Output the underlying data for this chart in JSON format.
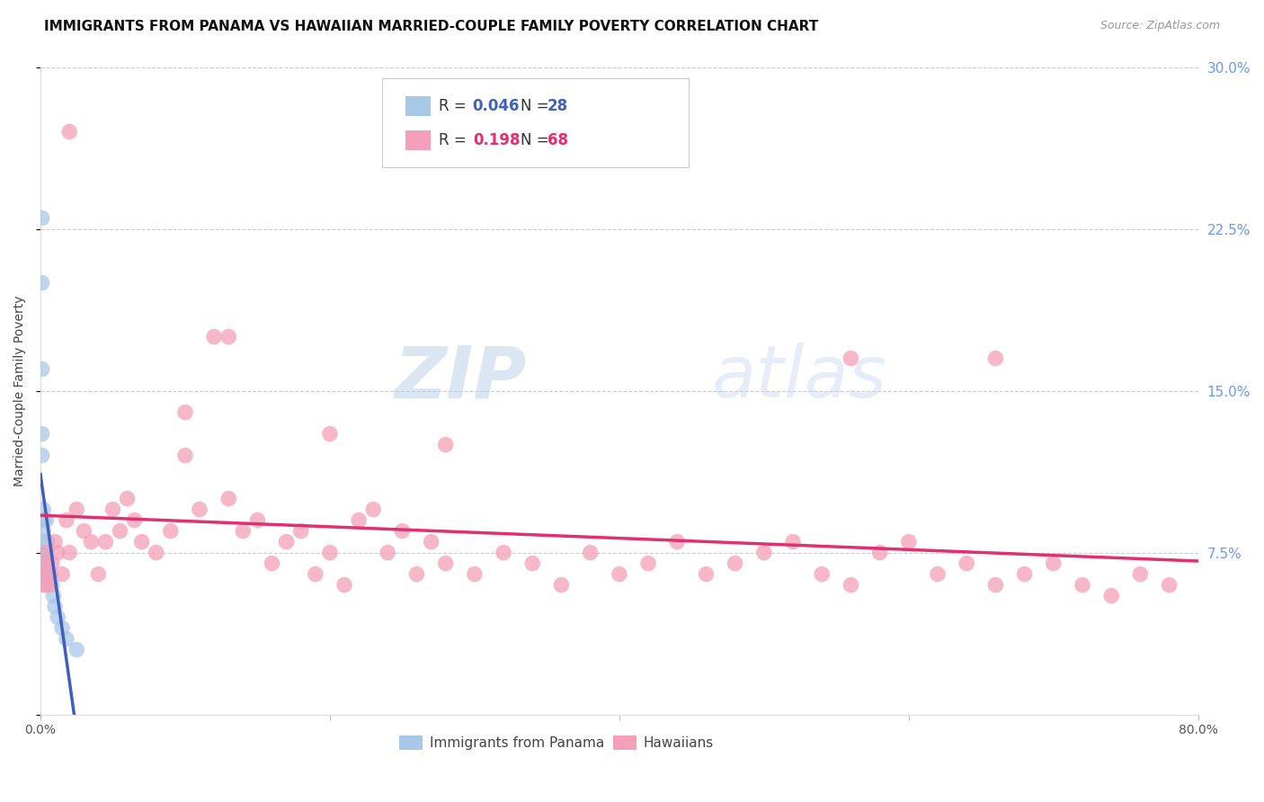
{
  "title": "IMMIGRANTS FROM PANAMA VS HAWAIIAN MARRIED-COUPLE FAMILY POVERTY CORRELATION CHART",
  "source": "Source: ZipAtlas.com",
  "ylabel": "Married-Couple Family Poverty",
  "xlim": [
    0,
    0.8
  ],
  "ylim": [
    0,
    0.3
  ],
  "xticks": [
    0.0,
    0.2,
    0.4,
    0.6,
    0.8
  ],
  "xticklabels": [
    "0.0%",
    "",
    "",
    "",
    "80.0%"
  ],
  "yticks_right": [
    0.0,
    0.075,
    0.15,
    0.225,
    0.3
  ],
  "yticklabels_right": [
    "",
    "7.5%",
    "15.0%",
    "22.5%",
    "30.0%"
  ],
  "series1_name": "Immigrants from Panama",
  "series2_name": "Hawaiians",
  "series1_R": "0.046",
  "series1_N": "28",
  "series2_R": "0.198",
  "series2_N": "68",
  "series1_color": "#a8c8e8",
  "series2_color": "#f4a0b8",
  "series1_line_color": "#4060c0",
  "series2_line_color": "#e03070",
  "watermark_color": "#d0dff0",
  "background_color": "#ffffff",
  "panama_x": [
    0.001,
    0.001,
    0.001,
    0.001,
    0.001,
    0.002,
    0.002,
    0.002,
    0.002,
    0.002,
    0.002,
    0.003,
    0.003,
    0.003,
    0.003,
    0.004,
    0.004,
    0.005,
    0.005,
    0.006,
    0.007,
    0.008,
    0.009,
    0.01,
    0.012,
    0.015,
    0.018,
    0.025
  ],
  "panama_y": [
    0.23,
    0.2,
    0.16,
    0.13,
    0.12,
    0.095,
    0.09,
    0.085,
    0.08,
    0.075,
    0.07,
    0.075,
    0.07,
    0.065,
    0.06,
    0.09,
    0.075,
    0.08,
    0.07,
    0.065,
    0.065,
    0.06,
    0.055,
    0.05,
    0.045,
    0.04,
    0.035,
    0.03
  ],
  "hawaiian_x": [
    0.001,
    0.002,
    0.003,
    0.004,
    0.005,
    0.006,
    0.008,
    0.01,
    0.012,
    0.015,
    0.018,
    0.02,
    0.025,
    0.03,
    0.035,
    0.04,
    0.045,
    0.05,
    0.055,
    0.06,
    0.065,
    0.07,
    0.08,
    0.09,
    0.1,
    0.11,
    0.12,
    0.13,
    0.14,
    0.15,
    0.16,
    0.17,
    0.18,
    0.19,
    0.2,
    0.21,
    0.22,
    0.23,
    0.24,
    0.25,
    0.26,
    0.27,
    0.28,
    0.3,
    0.32,
    0.34,
    0.36,
    0.38,
    0.4,
    0.42,
    0.44,
    0.46,
    0.48,
    0.5,
    0.52,
    0.54,
    0.56,
    0.58,
    0.6,
    0.62,
    0.64,
    0.66,
    0.68,
    0.7,
    0.72,
    0.74,
    0.76,
    0.78
  ],
  "hawaiian_y": [
    0.065,
    0.07,
    0.06,
    0.075,
    0.065,
    0.06,
    0.07,
    0.08,
    0.075,
    0.065,
    0.09,
    0.075,
    0.095,
    0.085,
    0.08,
    0.065,
    0.08,
    0.095,
    0.085,
    0.1,
    0.09,
    0.08,
    0.075,
    0.085,
    0.12,
    0.095,
    0.175,
    0.1,
    0.085,
    0.09,
    0.07,
    0.08,
    0.085,
    0.065,
    0.075,
    0.06,
    0.09,
    0.095,
    0.075,
    0.085,
    0.065,
    0.08,
    0.07,
    0.065,
    0.075,
    0.07,
    0.06,
    0.075,
    0.065,
    0.07,
    0.08,
    0.065,
    0.07,
    0.075,
    0.08,
    0.065,
    0.06,
    0.075,
    0.08,
    0.065,
    0.07,
    0.06,
    0.065,
    0.07,
    0.06,
    0.055,
    0.065,
    0.06
  ],
  "hawaii_outlier_x": [
    0.02,
    0.1,
    0.13,
    0.2,
    0.28,
    0.56,
    0.66
  ],
  "hawaii_outlier_y": [
    0.27,
    0.14,
    0.175,
    0.13,
    0.125,
    0.165,
    0.165
  ],
  "title_fontsize": 11,
  "source_fontsize": 9,
  "axis_fontsize": 10,
  "legend_fontsize": 12
}
